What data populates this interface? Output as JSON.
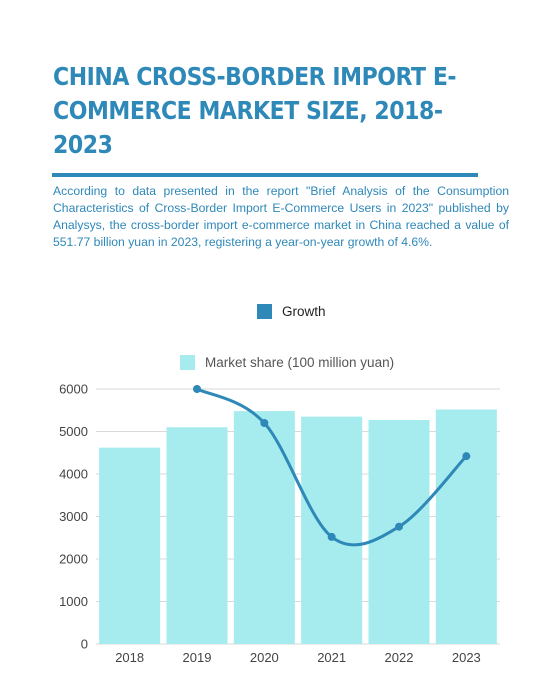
{
  "title": "CHINA CROSS-BORDER IMPORT E-COMMERCE MARKET SIZE, 2018-2023",
  "description": "According to data presented in the report \"Brief Analysis of the Consumption Characteristics of Cross-Border Import E-Commerce Users in 2023\" published by Analysys, the cross-border import e-commerce market in China reached a value of 551.77 billion yuan in 2023, registering a year-on-year growth of 4.6%.",
  "colors": {
    "accent": "#2e88b8",
    "bar": "#a6ebee",
    "line": "#2e88b8"
  },
  "chart_data": {
    "type": "bar",
    "categories": [
      "2018",
      "2019",
      "2020",
      "2021",
      "2022",
      "2023"
    ],
    "series": [
      {
        "name": "Market share (100 million yuan)",
        "type": "bar",
        "values": [
          4620,
          5100,
          5480,
          5350,
          5270,
          5517.7
        ]
      },
      {
        "name": "Growth",
        "type": "line",
        "smooth": true,
        "values": [
          null,
          6000,
          5200,
          2520,
          2760,
          4420
        ]
      }
    ],
    "ylim": [
      0,
      6000
    ],
    "yticks": [
      0,
      1000,
      2000,
      3000,
      4000,
      5000,
      6000
    ],
    "xlabel": "",
    "ylabel": "",
    "grid": true,
    "legend": "top-center"
  }
}
